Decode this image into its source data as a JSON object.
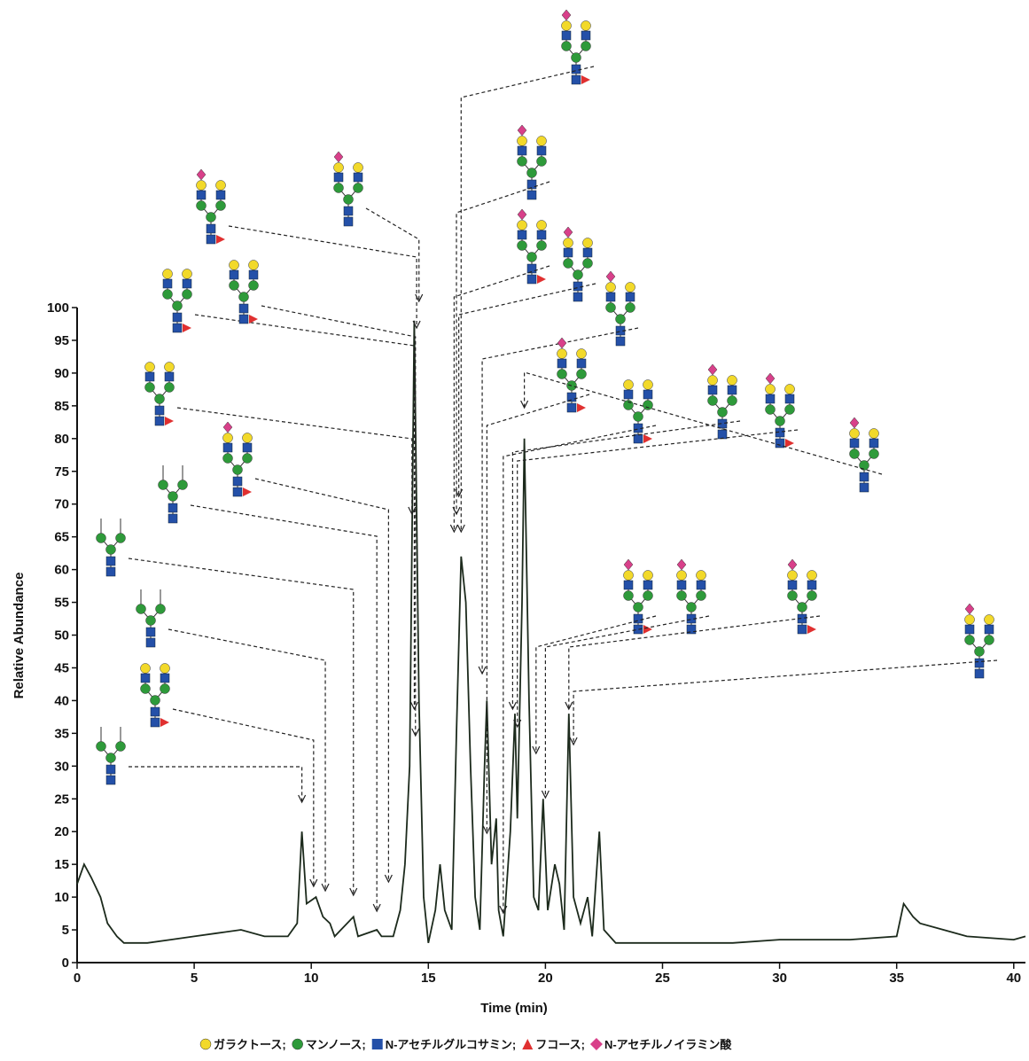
{
  "chart_data": {
    "type": "line",
    "x_label": "Time (min)",
    "y_label": "Relative Abundance",
    "xlim": [
      0,
      40.5
    ],
    "xticks": [
      0,
      5,
      10,
      15,
      20,
      25,
      30,
      35,
      40
    ],
    "ylim": [
      0,
      100
    ],
    "yticks": [
      0,
      5,
      10,
      15,
      20,
      25,
      30,
      35,
      40,
      45,
      50,
      55,
      60,
      65,
      70,
      75,
      80,
      85,
      90,
      95,
      100
    ],
    "color": "#1c2a1c",
    "x": [
      0,
      0.3,
      0.6,
      1,
      1.3,
      1.7,
      2,
      3,
      4,
      5,
      6,
      7,
      8,
      9,
      9.4,
      9.6,
      9.8,
      10.2,
      10.5,
      10.8,
      11,
      11.8,
      12,
      12.8,
      13,
      13.5,
      13.8,
      14,
      14.2,
      14.4,
      14.6,
      14.8,
      15,
      15.3,
      15.5,
      15.7,
      16,
      16.2,
      16.4,
      16.6,
      16.8,
      17,
      17.2,
      17.4,
      17.5,
      17.7,
      17.9,
      18,
      18.2,
      18.5,
      18.7,
      18.8,
      19,
      19.1,
      19.3,
      19.5,
      19.7,
      19.9,
      20.1,
      20.4,
      20.6,
      20.8,
      21,
      21.2,
      21.5,
      21.8,
      22,
      22.3,
      22.5,
      23,
      25,
      28,
      30,
      33,
      35,
      35.3,
      35.7,
      36,
      37,
      38,
      40,
      40.5
    ],
    "values": [
      12,
      15,
      13,
      10,
      6,
      4,
      3,
      3,
      3.5,
      4,
      4.5,
      5,
      4,
      4,
      6,
      20,
      9,
      10,
      7,
      6,
      4,
      7,
      4,
      5,
      4,
      4,
      8,
      15,
      30,
      98,
      40,
      10,
      3,
      8,
      15,
      8,
      5,
      35,
      62,
      55,
      30,
      10,
      5,
      30,
      40,
      15,
      22,
      8,
      4,
      20,
      38,
      22,
      55,
      80,
      40,
      10,
      8,
      25,
      8,
      15,
      12,
      5,
      38,
      10,
      6,
      10,
      4,
      20,
      5,
      3,
      3,
      3,
      3.5,
      3.5,
      4,
      9,
      7,
      6,
      5,
      4,
      3.5,
      4
    ],
    "annotation_x": [
      9.6,
      10.1,
      10.6,
      11.8,
      12.8,
      13.3,
      14.3,
      14.4,
      14.45,
      14.5,
      14.6,
      16.1,
      16.2,
      16.3,
      16.4,
      17.3,
      17.5,
      18.2,
      18.6,
      18.8,
      19.1,
      19.6,
      20.0,
      21.0,
      21.2
    ],
    "legend": [
      {
        "name": "ガラクトース;",
        "color": "#f2d92a"
      },
      {
        "name": "マンノース;",
        "color": "#2e9a3a"
      },
      {
        "name": "N-アセチルグルコサミン;",
        "color": "#2450a8"
      },
      {
        "name": "フコース;",
        "color": "#e03030"
      },
      {
        "name": "N-アセチルノイラミン酸",
        "color": "#d8408a"
      }
    ]
  }
}
